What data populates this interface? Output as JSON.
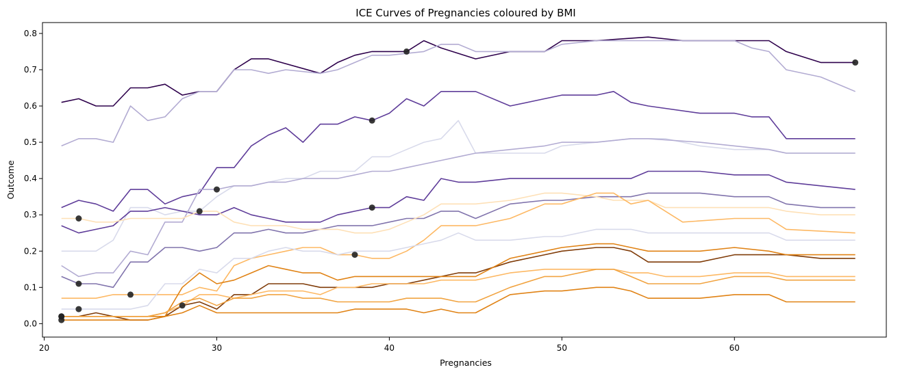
{
  "chart_data": {
    "type": "line",
    "title": "ICE Curves of Pregnancies coloured by BMI",
    "xlabel": "Pregnancies",
    "ylabel": "Outcome",
    "xlim": [
      19.9,
      68.8
    ],
    "ylim": [
      -0.037,
      0.83
    ],
    "xticks": [
      20,
      30,
      40,
      50,
      60
    ],
    "yticks": [
      0.0,
      0.1,
      0.2,
      0.3,
      0.4,
      0.5,
      0.6,
      0.7,
      0.8
    ],
    "grid": false,
    "legend": "none",
    "series": [
      {
        "color": "#2d004b",
        "x": [
          21,
          22,
          23,
          24,
          25,
          26,
          27,
          28,
          29,
          30,
          31,
          32,
          33,
          36,
          37,
          38,
          39,
          41,
          42,
          43,
          45,
          47,
          49,
          50,
          52,
          55,
          57,
          60,
          62,
          63,
          65,
          67
        ],
        "y": [
          0.61,
          0.62,
          0.6,
          0.6,
          0.65,
          0.65,
          0.66,
          0.63,
          0.64,
          0.64,
          0.7,
          0.73,
          0.73,
          0.69,
          0.72,
          0.74,
          0.75,
          0.75,
          0.78,
          0.76,
          0.73,
          0.75,
          0.75,
          0.78,
          0.78,
          0.79,
          0.78,
          0.78,
          0.78,
          0.75,
          0.72,
          0.72
        ]
      },
      {
        "color": "#b2abd2",
        "x": [
          21,
          22,
          23,
          24,
          25,
          26,
          27,
          28,
          29,
          30,
          31,
          32,
          33,
          34,
          36,
          37,
          38,
          39,
          40,
          42,
          43,
          44,
          45,
          47,
          49,
          50,
          52,
          55,
          57,
          60,
          61,
          62,
          63,
          65,
          67
        ],
        "y": [
          0.49,
          0.51,
          0.51,
          0.5,
          0.6,
          0.56,
          0.57,
          0.62,
          0.64,
          0.64,
          0.7,
          0.7,
          0.69,
          0.7,
          0.69,
          0.7,
          0.72,
          0.74,
          0.74,
          0.75,
          0.77,
          0.77,
          0.75,
          0.75,
          0.75,
          0.77,
          0.78,
          0.78,
          0.78,
          0.78,
          0.76,
          0.75,
          0.7,
          0.68,
          0.64
        ]
      },
      {
        "color": "#5e3c99",
        "x": [
          21,
          22,
          23,
          24,
          25,
          26,
          27,
          28,
          29,
          30,
          31,
          32,
          33,
          34,
          35,
          36,
          37,
          38,
          39,
          40,
          41,
          42,
          43,
          44,
          45,
          47,
          49,
          50,
          52,
          53,
          54,
          55,
          58,
          60,
          61,
          62,
          63,
          65,
          67
        ],
        "y": [
          0.32,
          0.34,
          0.33,
          0.31,
          0.37,
          0.37,
          0.33,
          0.35,
          0.36,
          0.43,
          0.43,
          0.49,
          0.52,
          0.54,
          0.5,
          0.55,
          0.55,
          0.57,
          0.56,
          0.58,
          0.62,
          0.6,
          0.64,
          0.64,
          0.64,
          0.6,
          0.62,
          0.63,
          0.63,
          0.64,
          0.61,
          0.6,
          0.58,
          0.58,
          0.57,
          0.57,
          0.51,
          0.51,
          0.51
        ]
      },
      {
        "color": "#d8daeb",
        "x": [
          21,
          22,
          23,
          24,
          25,
          26,
          27,
          28,
          29,
          30,
          31,
          32,
          33,
          34,
          35,
          36,
          37,
          38,
          39,
          40,
          41,
          42,
          43,
          44,
          45,
          47,
          49,
          50,
          52,
          54,
          56,
          58,
          60,
          62,
          63,
          67
        ],
        "y": [
          0.2,
          0.2,
          0.2,
          0.23,
          0.32,
          0.32,
          0.3,
          0.31,
          0.31,
          0.35,
          0.38,
          0.38,
          0.39,
          0.4,
          0.4,
          0.42,
          0.42,
          0.42,
          0.46,
          0.46,
          0.48,
          0.5,
          0.51,
          0.56,
          0.47,
          0.47,
          0.47,
          0.49,
          0.5,
          0.51,
          0.51,
          0.49,
          0.48,
          0.48,
          0.47,
          0.47
        ]
      },
      {
        "color": "#5e3c99",
        "x": [
          21,
          22,
          23,
          24,
          25,
          26,
          27,
          28,
          29,
          30,
          31,
          32,
          33,
          34,
          35,
          36,
          37,
          38,
          39,
          40,
          41,
          42,
          43,
          44,
          45,
          47,
          49,
          50,
          52,
          54,
          55,
          58,
          60,
          62,
          63,
          65,
          67
        ],
        "y": [
          0.27,
          0.25,
          0.26,
          0.27,
          0.31,
          0.31,
          0.32,
          0.31,
          0.3,
          0.3,
          0.32,
          0.3,
          0.29,
          0.28,
          0.28,
          0.28,
          0.3,
          0.31,
          0.32,
          0.32,
          0.35,
          0.34,
          0.4,
          0.39,
          0.39,
          0.4,
          0.4,
          0.4,
          0.4,
          0.4,
          0.42,
          0.42,
          0.41,
          0.41,
          0.39,
          0.38,
          0.37
        ]
      },
      {
        "color": "#8073ac",
        "x": [
          21,
          22,
          23,
          24,
          25,
          26,
          27,
          28,
          29,
          30,
          31,
          32,
          33,
          34,
          35,
          36,
          37,
          38,
          39,
          40,
          41,
          42,
          43,
          44,
          45,
          47,
          49,
          50,
          52,
          54,
          55,
          58,
          60,
          62,
          63,
          65,
          67
        ],
        "y": [
          0.13,
          0.11,
          0.11,
          0.1,
          0.17,
          0.17,
          0.21,
          0.21,
          0.2,
          0.21,
          0.25,
          0.25,
          0.26,
          0.25,
          0.25,
          0.26,
          0.27,
          0.27,
          0.27,
          0.28,
          0.29,
          0.29,
          0.31,
          0.31,
          0.29,
          0.33,
          0.34,
          0.34,
          0.35,
          0.35,
          0.36,
          0.36,
          0.35,
          0.35,
          0.33,
          0.32,
          0.32
        ]
      },
      {
        "color": "#b2abd2",
        "x": [
          21,
          22,
          23,
          24,
          25,
          26,
          27,
          28,
          29,
          30,
          31,
          32,
          33,
          34,
          35,
          36,
          37,
          38,
          39,
          40,
          41,
          42,
          43,
          44,
          45,
          47,
          49,
          50,
          52,
          54,
          55,
          58,
          60,
          62,
          63,
          65,
          67
        ],
        "y": [
          0.16,
          0.13,
          0.14,
          0.14,
          0.2,
          0.19,
          0.28,
          0.28,
          0.37,
          0.37,
          0.38,
          0.38,
          0.39,
          0.39,
          0.4,
          0.4,
          0.4,
          0.41,
          0.42,
          0.42,
          0.43,
          0.44,
          0.45,
          0.46,
          0.47,
          0.48,
          0.49,
          0.5,
          0.5,
          0.51,
          0.51,
          0.5,
          0.49,
          0.48,
          0.47,
          0.47,
          0.47
        ]
      },
      {
        "color": "#fee0b6",
        "x": [
          21,
          22,
          23,
          24,
          25,
          26,
          27,
          28,
          29,
          30,
          31,
          32,
          33,
          34,
          35,
          36,
          37,
          38,
          39,
          40,
          41,
          42,
          43,
          44,
          45,
          47,
          49,
          50,
          52,
          53,
          54,
          55,
          56,
          58,
          60,
          62,
          63,
          65,
          67
        ],
        "y": [
          0.29,
          0.29,
          0.28,
          0.28,
          0.29,
          0.29,
          0.29,
          0.29,
          0.31,
          0.31,
          0.28,
          0.27,
          0.27,
          0.27,
          0.26,
          0.26,
          0.26,
          0.25,
          0.25,
          0.26,
          0.28,
          0.3,
          0.33,
          0.33,
          0.33,
          0.34,
          0.36,
          0.36,
          0.35,
          0.34,
          0.34,
          0.34,
          0.32,
          0.32,
          0.32,
          0.32,
          0.31,
          0.3,
          0.3
        ]
      },
      {
        "color": "#fdb863",
        "x": [
          21,
          22,
          23,
          24,
          25,
          26,
          27,
          28,
          29,
          30,
          31,
          32,
          33,
          34,
          35,
          36,
          37,
          38,
          39,
          40,
          41,
          42,
          43,
          44,
          45,
          47,
          49,
          50,
          52,
          53,
          54,
          55,
          56,
          57,
          60,
          62,
          63,
          67
        ],
        "y": [
          0.07,
          0.07,
          0.07,
          0.08,
          0.08,
          0.08,
          0.08,
          0.08,
          0.1,
          0.09,
          0.16,
          0.18,
          0.19,
          0.2,
          0.21,
          0.21,
          0.19,
          0.19,
          0.18,
          0.18,
          0.2,
          0.23,
          0.27,
          0.27,
          0.27,
          0.29,
          0.33,
          0.33,
          0.36,
          0.36,
          0.33,
          0.34,
          0.31,
          0.28,
          0.29,
          0.29,
          0.26,
          0.25
        ]
      },
      {
        "color": "#d8daeb",
        "x": [
          21,
          22,
          23,
          24,
          25,
          26,
          27,
          28,
          29,
          30,
          31,
          32,
          33,
          34,
          35,
          36,
          37,
          38,
          39,
          40,
          41,
          42,
          43,
          44,
          45,
          47,
          49,
          50,
          52,
          54,
          55,
          58,
          60,
          62,
          63,
          65,
          67
        ],
        "y": [
          0.04,
          0.04,
          0.04,
          0.04,
          0.04,
          0.05,
          0.11,
          0.11,
          0.15,
          0.14,
          0.18,
          0.18,
          0.2,
          0.21,
          0.2,
          0.2,
          0.19,
          0.2,
          0.2,
          0.2,
          0.21,
          0.22,
          0.23,
          0.25,
          0.23,
          0.23,
          0.24,
          0.24,
          0.26,
          0.26,
          0.25,
          0.25,
          0.25,
          0.25,
          0.23,
          0.23,
          0.23
        ]
      },
      {
        "color": "#7f3b08",
        "x": [
          21,
          22,
          23,
          24,
          25,
          26,
          27,
          28,
          29,
          30,
          31,
          32,
          33,
          34,
          35,
          36,
          37,
          38,
          39,
          40,
          41,
          42,
          43,
          44,
          45,
          47,
          49,
          50,
          52,
          53,
          54,
          55,
          56,
          58,
          60,
          62,
          63,
          65,
          67
        ],
        "y": [
          0.02,
          0.02,
          0.03,
          0.02,
          0.01,
          0.01,
          0.02,
          0.05,
          0.06,
          0.04,
          0.08,
          0.08,
          0.11,
          0.11,
          0.11,
          0.1,
          0.1,
          0.1,
          0.1,
          0.11,
          0.11,
          0.12,
          0.13,
          0.14,
          0.14,
          0.17,
          0.19,
          0.2,
          0.21,
          0.21,
          0.2,
          0.17,
          0.17,
          0.17,
          0.19,
          0.19,
          0.19,
          0.18,
          0.18
        ]
      },
      {
        "color": "#e08214",
        "x": [
          21,
          22,
          23,
          24,
          25,
          26,
          27,
          28,
          29,
          30,
          31,
          32,
          33,
          34,
          35,
          36,
          37,
          38,
          39,
          40,
          41,
          42,
          43,
          44,
          45,
          47,
          49,
          50,
          52,
          53,
          54,
          55,
          56,
          58,
          60,
          62,
          63,
          65,
          67
        ],
        "y": [
          0.02,
          0.02,
          0.02,
          0.02,
          0.02,
          0.02,
          0.02,
          0.1,
          0.14,
          0.11,
          0.12,
          0.14,
          0.16,
          0.15,
          0.14,
          0.14,
          0.12,
          0.13,
          0.13,
          0.13,
          0.13,
          0.13,
          0.13,
          0.13,
          0.13,
          0.18,
          0.2,
          0.21,
          0.22,
          0.22,
          0.21,
          0.2,
          0.2,
          0.2,
          0.21,
          0.2,
          0.19,
          0.19,
          0.19
        ]
      },
      {
        "color": "#fdb863",
        "x": [
          21,
          22,
          23,
          24,
          25,
          26,
          27,
          28,
          29,
          30,
          31,
          32,
          33,
          34,
          35,
          36,
          37,
          38,
          39,
          40,
          41,
          42,
          43,
          44,
          45,
          47,
          49,
          50,
          52,
          53,
          54,
          55,
          56,
          58,
          60,
          62,
          63,
          65,
          67
        ],
        "y": [
          0.02,
          0.02,
          0.02,
          0.02,
          0.02,
          0.02,
          0.03,
          0.05,
          0.08,
          0.08,
          0.07,
          0.08,
          0.09,
          0.09,
          0.09,
          0.08,
          0.1,
          0.1,
          0.11,
          0.11,
          0.11,
          0.11,
          0.12,
          0.12,
          0.12,
          0.14,
          0.15,
          0.15,
          0.15,
          0.15,
          0.14,
          0.14,
          0.13,
          0.13,
          0.14,
          0.14,
          0.13,
          0.13,
          0.13
        ]
      },
      {
        "color": "#f1a340",
        "x": [
          21,
          22,
          23,
          24,
          25,
          26,
          27,
          28,
          29,
          30,
          31,
          32,
          33,
          34,
          35,
          36,
          37,
          38,
          39,
          40,
          41,
          42,
          43,
          44,
          45,
          47,
          49,
          50,
          52,
          53,
          54,
          55,
          56,
          58,
          60,
          62,
          63,
          65,
          67
        ],
        "y": [
          0.02,
          0.02,
          0.02,
          0.02,
          0.02,
          0.02,
          0.03,
          0.06,
          0.07,
          0.05,
          0.07,
          0.07,
          0.08,
          0.08,
          0.07,
          0.07,
          0.06,
          0.06,
          0.06,
          0.06,
          0.07,
          0.07,
          0.07,
          0.06,
          0.06,
          0.1,
          0.13,
          0.13,
          0.15,
          0.15,
          0.13,
          0.11,
          0.11,
          0.11,
          0.13,
          0.13,
          0.12,
          0.12,
          0.12
        ]
      },
      {
        "color": "#e08214",
        "x": [
          21,
          22,
          23,
          24,
          25,
          26,
          27,
          28,
          29,
          30,
          31,
          32,
          33,
          34,
          35,
          36,
          37,
          38,
          39,
          40,
          41,
          42,
          43,
          44,
          45,
          47,
          49,
          50,
          52,
          53,
          54,
          55,
          56,
          58,
          60,
          62,
          63,
          65,
          67
        ],
        "y": [
          0.01,
          0.01,
          0.01,
          0.01,
          0.01,
          0.01,
          0.02,
          0.03,
          0.05,
          0.03,
          0.03,
          0.03,
          0.03,
          0.03,
          0.03,
          0.03,
          0.03,
          0.04,
          0.04,
          0.04,
          0.04,
          0.03,
          0.04,
          0.03,
          0.03,
          0.08,
          0.09,
          0.09,
          0.1,
          0.1,
          0.09,
          0.07,
          0.07,
          0.07,
          0.08,
          0.08,
          0.06,
          0.06,
          0.06
        ]
      }
    ],
    "points": {
      "color": "#222222",
      "x": [
        21,
        21,
        21,
        22,
        22,
        22,
        25,
        28,
        29,
        30,
        38,
        39,
        39,
        41,
        67
      ],
      "y": [
        0.02,
        0.01,
        0.02,
        0.29,
        0.11,
        0.04,
        0.08,
        0.05,
        0.31,
        0.37,
        0.19,
        0.32,
        0.56,
        0.75,
        0.72
      ]
    }
  }
}
